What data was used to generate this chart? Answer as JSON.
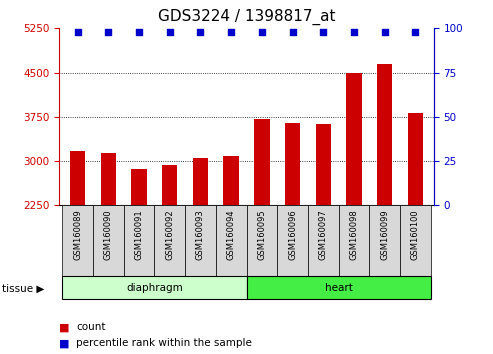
{
  "title": "GDS3224 / 1398817_at",
  "samples": [
    "GSM160089",
    "GSM160090",
    "GSM160091",
    "GSM160092",
    "GSM160093",
    "GSM160094",
    "GSM160095",
    "GSM160096",
    "GSM160097",
    "GSM160098",
    "GSM160099",
    "GSM160100"
  ],
  "counts": [
    3170,
    3140,
    2870,
    2940,
    3060,
    3080,
    3720,
    3640,
    3620,
    4490,
    4640,
    3820
  ],
  "percentile_ranks": [
    98,
    98,
    98,
    98,
    98,
    98,
    98,
    98,
    98,
    98,
    98,
    98
  ],
  "bar_color": "#cc0000",
  "dot_color": "#0000cc",
  "ylim_left": [
    2250,
    5250
  ],
  "ylim_right": [
    0,
    100
  ],
  "yticks_left": [
    2250,
    3000,
    3750,
    4500,
    5250
  ],
  "yticks_right": [
    0,
    25,
    50,
    75,
    100
  ],
  "grid_lines": [
    3000,
    3750,
    4500
  ],
  "tick_color_left": "#cc0000",
  "tick_color_right": "#0000cc",
  "title_fontsize": 11,
  "diaphragm_color": "#ccffcc",
  "heart_color": "#44ee44",
  "xlabel_bg_color": "#d8d8d8"
}
